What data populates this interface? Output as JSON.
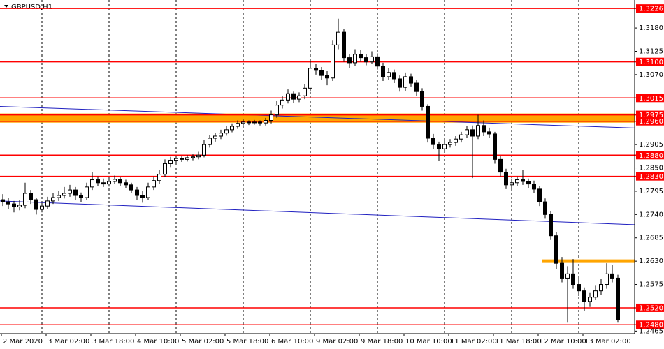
{
  "chart_data": {
    "type": "candlestick",
    "title": "GBPUSD,H1",
    "ylim": [
      1.2459,
      1.3246
    ],
    "yticks": [
      {
        "value": 1.318,
        "label": "1.3180"
      },
      1.3125,
      {
        "value": 1.307,
        "label": "1.3070"
      },
      1.2905,
      {
        "value": 1.285,
        "label": "1.2850"
      },
      1.2795,
      {
        "value": 1.274,
        "label": "1.2740"
      },
      1.2685,
      {
        "value": 1.263,
        "label": "1.2630"
      },
      1.2575,
      1.2465
    ],
    "levels": [
      1.3226,
      {
        "value": 1.31,
        "label": "1.3100"
      },
      1.3015,
      1.2975,
      {
        "value": 1.296,
        "label": "1.2960"
      },
      {
        "value": 1.288,
        "label": "1.2880"
      },
      {
        "value": 1.283,
        "label": "1.2830"
      },
      {
        "value": 1.252,
        "label": "1.2520"
      },
      {
        "value": 1.248,
        "label": "1.2480"
      }
    ],
    "level_color": "#ff0000",
    "zone": {
      "values": [
        1.2975,
        1.296
      ],
      "color": "#ffa500"
    },
    "support_line": {
      "value": 1.263,
      "color": "#ffa500"
    },
    "trendlines": [
      {
        "values": [
          1.2995,
          1.2944
        ],
        "color": "#2020c0"
      },
      {
        "values": [
          1.2772,
          1.2716
        ],
        "color": "#2020c0"
      }
    ],
    "x_labels": [
      "2 Mar 2020",
      "3 Mar 02:00",
      "3 Mar 18:00",
      "4 Mar 10:00",
      "5 Mar 02:00",
      "5 Mar 18:00",
      "6 Mar 10:00",
      "9 Mar 02:00",
      "9 Mar 18:00",
      "10 Mar 10:00",
      "11 Mar 02:00",
      "11 Mar 18:00",
      "12 Mar 10:00",
      "13 Mar 02:00"
    ],
    "candles": [
      [
        1.2775,
        1.2788,
        1.276,
        1.277
      ],
      [
        1.277,
        1.278,
        1.2752,
        1.2765
      ],
      [
        1.2765,
        1.2772,
        1.2745,
        1.2758
      ],
      [
        1.2758,
        1.2775,
        1.275,
        1.2762
      ],
      [
        1.2762,
        1.2815,
        1.2755,
        1.279
      ],
      [
        1.279,
        1.2798,
        1.2765,
        1.2775
      ],
      [
        1.2775,
        1.278,
        1.274,
        1.2752
      ],
      [
        1.2752,
        1.2768,
        1.2745,
        1.276
      ],
      [
        1.276,
        1.2782,
        1.2752,
        1.2772
      ],
      [
        1.2772,
        1.279,
        1.2765,
        1.278
      ],
      [
        1.278,
        1.2795,
        1.2772,
        1.2785
      ],
      [
        1.2785,
        1.2805,
        1.2778,
        1.279
      ],
      [
        1.279,
        1.281,
        1.2782,
        1.2798
      ],
      [
        1.2798,
        1.2805,
        1.2775,
        1.2785
      ],
      [
        1.2785,
        1.2792,
        1.277,
        1.278
      ],
      [
        1.278,
        1.2815,
        1.2775,
        1.2805
      ],
      [
        1.2805,
        1.284,
        1.2798,
        1.2822
      ],
      [
        1.2822,
        1.283,
        1.2808,
        1.2815
      ],
      [
        1.2815,
        1.2825,
        1.2805,
        1.2812
      ],
      [
        1.2812,
        1.2828,
        1.2806,
        1.2818
      ],
      [
        1.2818,
        1.2832,
        1.2812,
        1.2823
      ],
      [
        1.2823,
        1.2828,
        1.2808,
        1.2815
      ],
      [
        1.2815,
        1.2822,
        1.2802,
        1.281
      ],
      [
        1.281,
        1.2815,
        1.279,
        1.2798
      ],
      [
        1.2798,
        1.2805,
        1.2775,
        1.2785
      ],
      [
        1.2785,
        1.2795,
        1.2768,
        1.278
      ],
      [
        1.278,
        1.2815,
        1.2775,
        1.2805
      ],
      [
        1.2805,
        1.283,
        1.2798,
        1.282
      ],
      [
        1.282,
        1.2845,
        1.2812,
        1.2835
      ],
      [
        1.2835,
        1.287,
        1.2828,
        1.286
      ],
      [
        1.286,
        1.2876,
        1.2852,
        1.2868
      ],
      [
        1.2868,
        1.2878,
        1.2862,
        1.2872
      ],
      [
        1.2872,
        1.2877,
        1.2864,
        1.287
      ],
      [
        1.287,
        1.288,
        1.2865,
        1.2874
      ],
      [
        1.2874,
        1.2882,
        1.2868,
        1.2876
      ],
      [
        1.2876,
        1.2888,
        1.287,
        1.288
      ],
      [
        1.288,
        1.2915,
        1.2875,
        1.2905
      ],
      [
        1.2905,
        1.2928,
        1.2898,
        1.292
      ],
      [
        1.292,
        1.2932,
        1.2912,
        1.2925
      ],
      [
        1.2925,
        1.294,
        1.2918,
        1.2932
      ],
      [
        1.2932,
        1.2948,
        1.2926,
        1.294
      ],
      [
        1.294,
        1.2955,
        1.2934,
        1.2948
      ],
      [
        1.2948,
        1.2962,
        1.2942,
        1.2955
      ],
      [
        1.2955,
        1.2964,
        1.295,
        1.2958
      ],
      [
        1.2958,
        1.2962,
        1.2951,
        1.2957
      ],
      [
        1.2957,
        1.2963,
        1.2952,
        1.2958
      ],
      [
        1.2958,
        1.2962,
        1.295,
        1.2956
      ],
      [
        1.2956,
        1.2968,
        1.295,
        1.2962
      ],
      [
        1.2962,
        1.2985,
        1.2955,
        1.2975
      ],
      [
        1.2975,
        1.3008,
        1.2968,
        1.2998
      ],
      [
        1.2998,
        1.302,
        1.299,
        1.301
      ],
      [
        1.301,
        1.3035,
        1.3002,
        1.3025
      ],
      [
        1.3025,
        1.303,
        1.3004,
        1.3012
      ],
      [
        1.3012,
        1.3028,
        1.3005,
        1.302
      ],
      [
        1.302,
        1.3048,
        1.3012,
        1.3038
      ],
      [
        1.3038,
        1.3105,
        1.303,
        1.3085
      ],
      [
        1.3085,
        1.3095,
        1.307,
        1.308
      ],
      [
        1.308,
        1.3088,
        1.3058,
        1.3068
      ],
      [
        1.3068,
        1.3078,
        1.3045,
        1.3062
      ],
      [
        1.3062,
        1.315,
        1.3055,
        1.314
      ],
      [
        1.314,
        1.3202,
        1.313,
        1.317
      ],
      [
        1.317,
        1.3178,
        1.31,
        1.311
      ],
      [
        1.311,
        1.3118,
        1.3085,
        1.3098
      ],
      [
        1.3098,
        1.313,
        1.309,
        1.3118
      ],
      [
        1.3118,
        1.3128,
        1.31,
        1.311
      ],
      [
        1.311,
        1.3118,
        1.3092,
        1.31
      ],
      [
        1.31,
        1.3125,
        1.3095,
        1.3112
      ],
      [
        1.3112,
        1.312,
        1.3082,
        1.309
      ],
      [
        1.309,
        1.3098,
        1.3055,
        1.3065
      ],
      [
        1.3065,
        1.3085,
        1.3058,
        1.3075
      ],
      [
        1.3075,
        1.3082,
        1.305,
        1.306
      ],
      [
        1.306,
        1.3068,
        1.303,
        1.304
      ],
      [
        1.304,
        1.3075,
        1.3032,
        1.3065
      ],
      [
        1.3065,
        1.3072,
        1.3042,
        1.305
      ],
      [
        1.305,
        1.3058,
        1.302,
        1.303
      ],
      [
        1.303,
        1.3038,
        1.2985,
        1.2995
      ],
      [
        1.2995,
        1.3,
        1.291,
        1.292
      ],
      [
        1.292,
        1.293,
        1.2895,
        1.2905
      ],
      [
        1.2905,
        1.2912,
        1.2867,
        1.2895
      ],
      [
        1.2895,
        1.2915,
        1.2888,
        1.2905
      ],
      [
        1.2905,
        1.2918,
        1.2898,
        1.291
      ],
      [
        1.291,
        1.2925,
        1.2902,
        1.2918
      ],
      [
        1.2918,
        1.2935,
        1.291,
        1.2928
      ],
      [
        1.2928,
        1.2948,
        1.292,
        1.294
      ],
      [
        1.294,
        1.295,
        1.2826,
        1.2925
      ],
      [
        1.2925,
        1.2975,
        1.2918,
        1.295
      ],
      [
        1.295,
        1.2962,
        1.2925,
        1.2935
      ],
      [
        1.2935,
        1.2945,
        1.292,
        1.293
      ],
      [
        1.293,
        1.2935,
        1.286,
        1.287
      ],
      [
        1.287,
        1.2878,
        1.283,
        1.284
      ],
      [
        1.284,
        1.2848,
        1.28,
        1.281
      ],
      [
        1.281,
        1.2825,
        1.2802,
        1.2815
      ],
      [
        1.2815,
        1.283,
        1.2808,
        1.2822
      ],
      [
        1.2822,
        1.2845,
        1.281,
        1.2818
      ],
      [
        1.2818,
        1.2825,
        1.2802,
        1.2812
      ],
      [
        1.2812,
        1.282,
        1.279,
        1.28
      ],
      [
        1.28,
        1.2808,
        1.276,
        1.277
      ],
      [
        1.277,
        1.2778,
        1.273,
        1.274
      ],
      [
        1.274,
        1.2748,
        1.268,
        1.269
      ],
      [
        1.269,
        1.2698,
        1.2612,
        1.2625
      ],
      [
        1.2625,
        1.264,
        1.258,
        1.259
      ],
      [
        1.259,
        1.2618,
        1.2485,
        1.26
      ],
      [
        1.26,
        1.2635,
        1.2565,
        1.2575
      ],
      [
        1.2575,
        1.259,
        1.2548,
        1.256
      ],
      [
        1.256,
        1.2568,
        1.2512,
        1.2535
      ],
      [
        1.2535,
        1.2555,
        1.2522,
        1.2545
      ],
      [
        1.2545,
        1.2572,
        1.2538,
        1.256
      ],
      [
        1.256,
        1.2588,
        1.255,
        1.2575
      ],
      [
        1.2575,
        1.2625,
        1.2565,
        1.26
      ],
      [
        1.26,
        1.2622,
        1.258,
        1.259
      ],
      [
        1.259,
        1.2598,
        1.2485,
        1.2492
      ]
    ]
  }
}
